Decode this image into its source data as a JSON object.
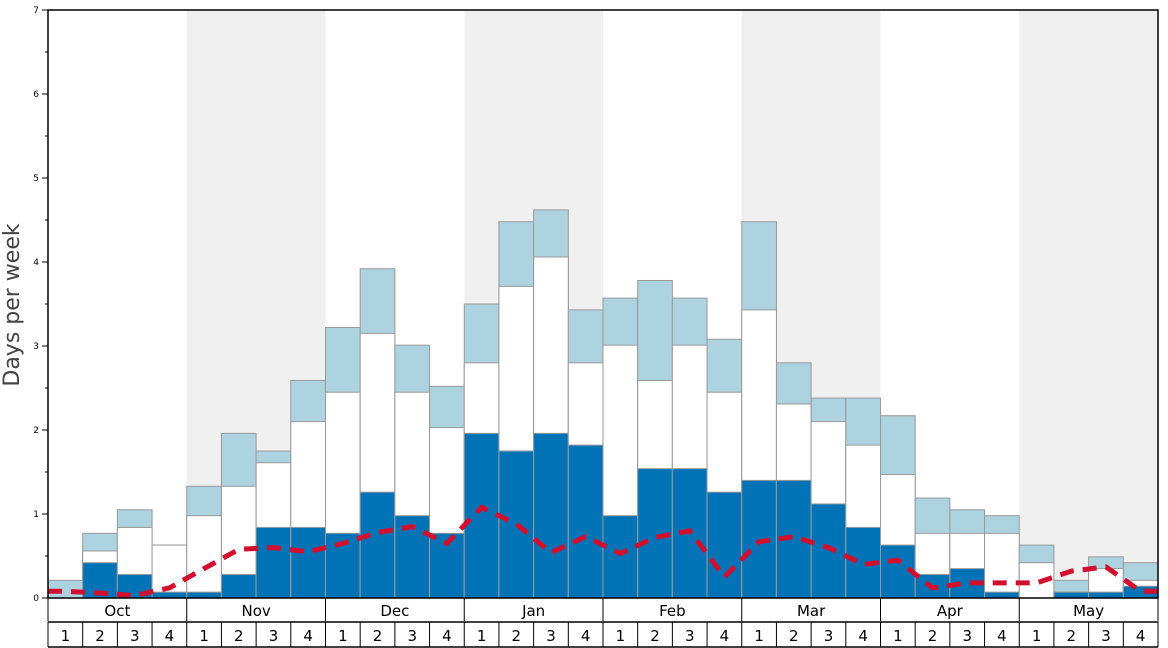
{
  "chart_data": {
    "type": "bar",
    "ylabel": "Days per week",
    "ylim": [
      0,
      7
    ],
    "yticks": [
      "0",
      "1",
      "2",
      "3",
      "4",
      "5",
      "6",
      "7"
    ],
    "months": [
      "Oct",
      "Nov",
      "Dec",
      "Jan",
      "Feb",
      "Mar",
      "Apr",
      "May"
    ],
    "week_labels": [
      "1",
      "2",
      "3",
      "4",
      "1",
      "2",
      "3",
      "4",
      "1",
      "2",
      "3",
      "4",
      "1",
      "2",
      "3",
      "4",
      "1",
      "2",
      "3",
      "4",
      "1",
      "2",
      "3",
      "4",
      "1",
      "2",
      "3",
      "4",
      "1",
      "2",
      "3",
      "4"
    ],
    "stacks": {
      "dark_blue_top": [
        0,
        0.42,
        0.28,
        0.07,
        0.07,
        0.28,
        0.84,
        0.84,
        0.77,
        1.26,
        0.98,
        0.77,
        1.96,
        1.75,
        1.96,
        1.82,
        0.98,
        1.54,
        1.54,
        1.26,
        1.4,
        1.4,
        1.12,
        0.84,
        0.63,
        0.28,
        0.35,
        0.07,
        0,
        0.07,
        0.07,
        0.14
      ],
      "white_top": [
        0,
        0.56,
        0.84,
        0.63,
        0.98,
        1.33,
        1.61,
        2.1,
        2.45,
        3.15,
        2.45,
        2.03,
        2.8,
        3.71,
        4.06,
        2.8,
        3.01,
        2.59,
        3.01,
        2.45,
        3.43,
        2.31,
        2.1,
        1.82,
        1.47,
        0.77,
        0.77,
        0.77,
        0.42,
        0.07,
        0.35,
        0.21
      ],
      "light_blue_top": [
        0.21,
        0.77,
        1.05,
        0.63,
        1.33,
        1.96,
        1.75,
        2.59,
        3.22,
        3.92,
        3.01,
        2.52,
        3.5,
        4.48,
        4.62,
        3.43,
        3.57,
        3.78,
        3.57,
        3.08,
        4.48,
        2.8,
        2.38,
        2.38,
        2.17,
        1.19,
        1.05,
        0.98,
        0.63,
        0.21,
        0.49,
        0.42
      ]
    },
    "line": [
      0.08,
      0.06,
      0.03,
      0.12,
      0.35,
      0.58,
      0.6,
      0.55,
      0.65,
      0.78,
      0.85,
      0.65,
      1.08,
      0.88,
      0.54,
      0.73,
      0.53,
      0.72,
      0.8,
      0.25,
      0.67,
      0.73,
      0.6,
      0.4,
      0.45,
      0.12,
      0.18,
      0.18,
      0.18,
      0.32,
      0.37,
      0.08
    ],
    "colors": {
      "dark": "#0073b7",
      "white": "#ffffff",
      "light": "#aed3e0",
      "line": "#d0102e",
      "band": "#f0f0f0",
      "bar_edge": "#999999"
    },
    "grid": false
  }
}
